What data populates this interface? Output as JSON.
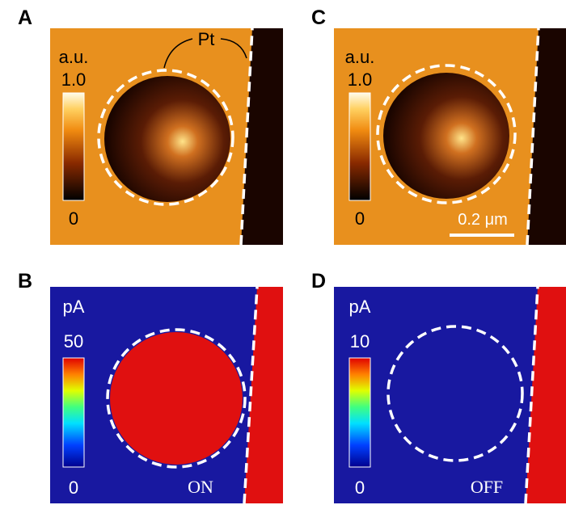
{
  "panels": [
    {
      "label": "A",
      "unit": "a.u.",
      "colorbar_max": "1.0",
      "colorbar_min": "0",
      "annotation": "Pt"
    },
    {
      "label": "C",
      "unit": "a.u.",
      "colorbar_max": "1.0",
      "colorbar_min": "0",
      "scale_bar": "0.2 μm"
    },
    {
      "label": "B",
      "unit": "pA",
      "colorbar_max": "50",
      "colorbar_min": "0",
      "state": "ON"
    },
    {
      "label": "D",
      "unit": "pA",
      "colorbar_max": "10",
      "colorbar_min": "0",
      "state": "OFF"
    }
  ]
}
